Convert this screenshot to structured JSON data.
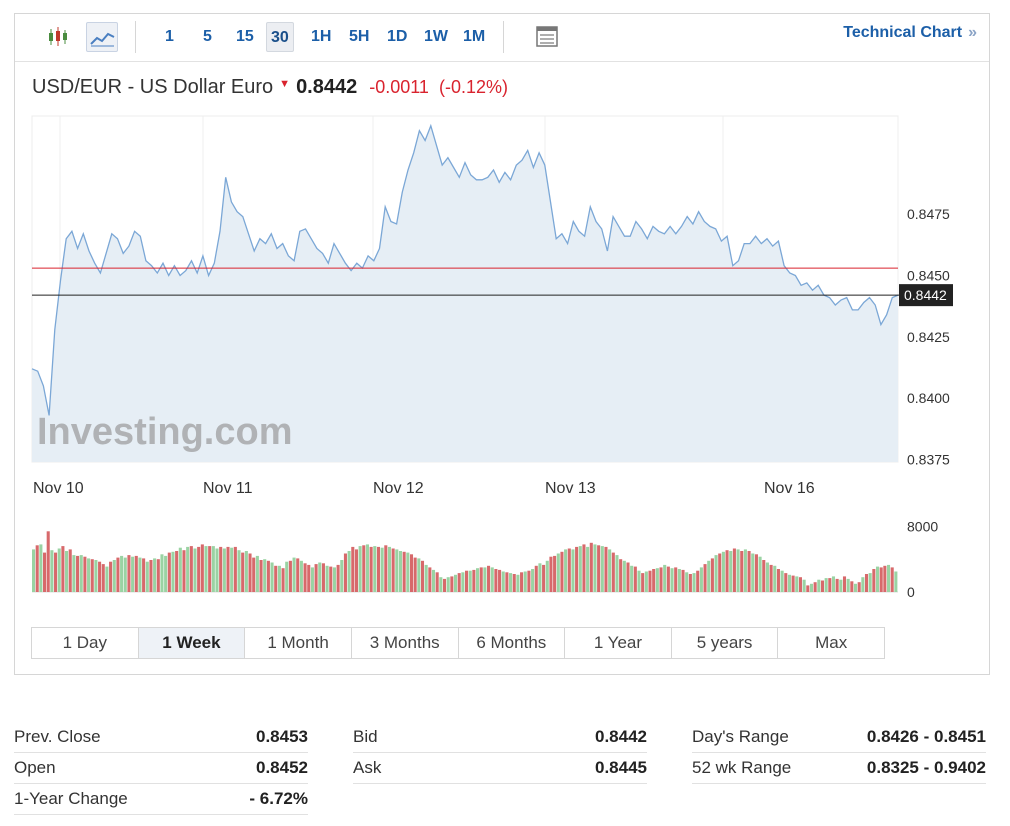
{
  "toolbar": {
    "icons": [
      "candlestick-icon",
      "area-chart-icon",
      "table-view-icon"
    ],
    "timeframes": [
      "1",
      "5",
      "15",
      "30",
      "1H",
      "5H",
      "1D",
      "1W",
      "1M"
    ],
    "active_timeframe": "30",
    "technical_chart": "Technical Chart",
    "technical_chevron": "»"
  },
  "header": {
    "name": "USD/EUR - US Dollar Euro",
    "price": "0.8442",
    "change": "-0.0011",
    "change_pct": "(-0.12%)"
  },
  "colors": {
    "negative": "#d9232e",
    "line": "#7ba7d6",
    "area": "#e6eef5",
    "prev_close_line": "#d9232e",
    "bar_up": "#9ad3a3",
    "bar_down": "#d7696b",
    "link": "#1c5fa8"
  },
  "watermark": "Investing.com",
  "chart_data": [
    {
      "type": "area",
      "x_labels": [
        "Nov 10",
        "Nov 11",
        "Nov 12",
        "Nov 13",
        "Nov 16"
      ],
      "y_ticks": [
        "0.8475",
        "0.8450",
        "0.8425",
        "0.8400",
        "0.8375"
      ],
      "ylim": [
        0.8374,
        0.8515
      ],
      "last_value": 0.8442,
      "last_value_label": "0.8442",
      "prev_close": 0.8453,
      "series": [
        {
          "values": [
            0.8412,
            0.8411,
            0.8405,
            0.8393,
            0.8428,
            0.8448,
            0.8465,
            0.8468,
            0.8461,
            0.8467,
            0.846,
            0.8455,
            0.8451,
            0.8459,
            0.8467,
            0.8465,
            0.8459,
            0.8462,
            0.8468,
            0.8466,
            0.8456,
            0.8454,
            0.8451,
            0.8455,
            0.845,
            0.8454,
            0.845,
            0.8452,
            0.8456,
            0.8451,
            0.8458,
            0.845,
            0.8455,
            0.8468,
            0.849,
            0.848,
            0.8476,
            0.8474,
            0.8467,
            0.846,
            0.8465,
            0.8463,
            0.8467,
            0.8461,
            0.8463,
            0.8458,
            0.8456,
            0.8468,
            0.8469,
            0.8465,
            0.8461,
            0.8459,
            0.8455,
            0.8463,
            0.8459,
            0.8455,
            0.8452,
            0.8455,
            0.8453,
            0.8458,
            0.8456,
            0.8461,
            0.8478,
            0.8472,
            0.8471,
            0.8484,
            0.8493,
            0.85,
            0.8509,
            0.8505,
            0.8511,
            0.8503,
            0.8495,
            0.8498,
            0.8494,
            0.849,
            0.8496,
            0.8491,
            0.8489,
            0.8489,
            0.849,
            0.8493,
            0.8488,
            0.8492,
            0.8489,
            0.8495,
            0.8497,
            0.8501,
            0.8494,
            0.85,
            0.8495,
            0.848,
            0.8465,
            0.8467,
            0.8463,
            0.8472,
            0.8468,
            0.8466,
            0.8478,
            0.8472,
            0.8469,
            0.846,
            0.8474,
            0.847,
            0.8466,
            0.8466,
            0.8472,
            0.8469,
            0.8465,
            0.847,
            0.8468,
            0.8467,
            0.847,
            0.8467,
            0.847,
            0.8474,
            0.8471,
            0.8476,
            0.8472,
            0.847,
            0.8469,
            0.8464,
            0.8466,
            0.8454,
            0.8456,
            0.8463,
            0.8463,
            0.8466,
            0.8463,
            0.8465,
            0.8462,
            0.8464,
            0.8454,
            0.8451,
            0.845,
            0.8446,
            0.8447,
            0.8444,
            0.8446,
            0.8442,
            0.8441,
            0.8438,
            0.844,
            0.8441,
            0.8436,
            0.8436,
            0.8439,
            0.8441,
            0.8438,
            0.843,
            0.8434,
            0.8441,
            0.8442
          ]
        }
      ]
    },
    {
      "type": "bar",
      "y_ticks": [
        "8000",
        "0"
      ],
      "ylim": [
        0,
        10000
      ],
      "colors_by_direction": true,
      "values": [
        5200,
        5700,
        5800,
        4800,
        7400,
        5100,
        4800,
        5300,
        5600,
        5000,
        5200,
        4500,
        4400,
        4500,
        4300,
        4100,
        4000,
        3900,
        3700,
        3400,
        3100,
        3700,
        3900,
        4200,
        4400,
        4200,
        4500,
        4300,
        4400,
        4200,
        4100,
        3700,
        3900,
        4100,
        4000,
        4600,
        4400,
        4800,
        4900,
        5000,
        5400,
        5100,
        5500,
        5600,
        5300,
        5500,
        5800,
        5600,
        5600,
        5600,
        5300,
        5500,
        5300,
        5500,
        5400,
        5500,
        5100,
        4800,
        5000,
        4700,
        4200,
        4400,
        3900,
        4000,
        3800,
        3600,
        3200,
        3200,
        2900,
        3700,
        3800,
        4200,
        4100,
        3800,
        3500,
        3300,
        3000,
        3400,
        3600,
        3500,
        3200,
        3100,
        3000,
        3300,
        3900,
        4700,
        5000,
        5500,
        5200,
        5600,
        5700,
        5800,
        5500,
        5600,
        5500,
        5400,
        5700,
        5500,
        5300,
        5200,
        5000,
        4900,
        4800,
        4600,
        4200,
        4100,
        3800,
        3300,
        3000,
        2700,
        2400,
        1800,
        1600,
        1800,
        1900,
        2100,
        2300,
        2400,
        2600,
        2600,
        2700,
        2900,
        3000,
        3000,
        3200,
        3000,
        2800,
        2700,
        2500,
        2400,
        2300,
        2200,
        2100,
        2400,
        2500,
        2600,
        2800,
        3200,
        3500,
        3300,
        3800,
        4300,
        4400,
        4700,
        4900,
        5200,
        5300,
        5200,
        5500,
        5600,
        5800,
        5500,
        6000,
        5800,
        5700,
        5600,
        5500,
        5200,
        4800,
        4500,
        4000,
        3800,
        3600,
        3200,
        3100,
        2600,
        2300,
        2500,
        2600,
        2800,
        2900,
        3000,
        3300,
        3100,
        2900,
        3000,
        2800,
        2700,
        2400,
        2200,
        2300,
        2600,
        3000,
        3400,
        3800,
        4100,
        4500,
        4700,
        4900,
        5100,
        5000,
        5300,
        5200,
        5000,
        5200,
        5000,
        4700,
        4600,
        4300,
        3900,
        3600,
        3300,
        3200,
        2800,
        2600,
        2300,
        2100,
        2000,
        1900,
        1800,
        1500,
        800,
        1000,
        1200,
        1500,
        1400,
        1700,
        1700,
        1900,
        1600,
        1500,
        1900,
        1600,
        1300,
        1000,
        1200,
        1800,
        2200,
        2300,
        2800,
        3100,
        3000,
        3200,
        3300,
        3000,
        2500
      ],
      "directions": [
        "u",
        "d",
        "u",
        "d",
        "d",
        "u",
        "d",
        "u",
        "d",
        "u",
        "d",
        "u",
        "d",
        "u",
        "d",
        "u",
        "d",
        "u",
        "d",
        "d",
        "u",
        "d",
        "u",
        "d",
        "u",
        "u",
        "d",
        "u",
        "d",
        "u",
        "d",
        "u",
        "d",
        "u",
        "d",
        "u",
        "u",
        "d",
        "u",
        "d",
        "u",
        "d",
        "u",
        "d",
        "u",
        "d",
        "d",
        "u",
        "d",
        "u",
        "u",
        "d",
        "u",
        "d",
        "u",
        "d",
        "u",
        "d",
        "u",
        "d",
        "d",
        "u",
        "d",
        "u",
        "d",
        "u",
        "d",
        "u",
        "d",
        "u",
        "d",
        "u",
        "d",
        "u",
        "d",
        "d",
        "u",
        "d",
        "u",
        "d",
        "u",
        "d",
        "u",
        "d",
        "u",
        "d",
        "u",
        "d",
        "d",
        "u",
        "d",
        "u",
        "d",
        "u",
        "d",
        "u",
        "d",
        "u",
        "d",
        "u",
        "u",
        "d",
        "u",
        "d",
        "d",
        "u",
        "d",
        "u",
        "d",
        "u",
        "d",
        "u",
        "d",
        "u",
        "d",
        "u",
        "d",
        "u",
        "d",
        "u",
        "d",
        "u",
        "d",
        "u",
        "d",
        "u",
        "d",
        "d",
        "u",
        "d",
        "u",
        "d",
        "u",
        "d",
        "u",
        "d",
        "u",
        "d",
        "u",
        "d",
        "u",
        "d",
        "d",
        "u",
        "d",
        "u",
        "d",
        "u",
        "d",
        "u",
        "d",
        "u",
        "d",
        "u",
        "d",
        "u",
        "d",
        "u",
        "d",
        "u",
        "d",
        "u",
        "d",
        "u",
        "d",
        "u",
        "d",
        "u",
        "d",
        "d",
        "u",
        "d",
        "u",
        "d",
        "u",
        "d",
        "u",
        "d",
        "u",
        "d",
        "u",
        "d",
        "u",
        "d",
        "u",
        "d",
        "u",
        "d",
        "u",
        "d",
        "u",
        "d",
        "u",
        "d",
        "u",
        "d",
        "u",
        "d",
        "u",
        "d",
        "u",
        "d",
        "u",
        "d",
        "u",
        "d",
        "u",
        "d",
        "u",
        "d",
        "u",
        "d",
        "u",
        "d",
        "u",
        "d",
        "u",
        "d",
        "u",
        "d",
        "u",
        "d",
        "u",
        "d",
        "u",
        "d",
        "u",
        "d",
        "u",
        "d",
        "u",
        "d",
        "d",
        "u",
        "d",
        "u",
        "d",
        "d",
        "u"
      ]
    }
  ],
  "ranges": [
    "1 Day",
    "1 Week",
    "1 Month",
    "3 Months",
    "6 Months",
    "1 Year",
    "5 years",
    "Max"
  ],
  "active_range": "1 Week",
  "stats": [
    [
      {
        "label": "Prev. Close",
        "value": "0.8453"
      },
      {
        "label": "Open",
        "value": "0.8452"
      },
      {
        "label": "1-Year Change",
        "value": "- 6.72%"
      }
    ],
    [
      {
        "label": "Bid",
        "value": "0.8442"
      },
      {
        "label": "Ask",
        "value": "0.8445"
      }
    ],
    [
      {
        "label": "Day's Range",
        "value": "0.8426 - 0.8451"
      },
      {
        "label": "52 wk Range",
        "value": "0.8325 - 0.9402"
      }
    ]
  ]
}
